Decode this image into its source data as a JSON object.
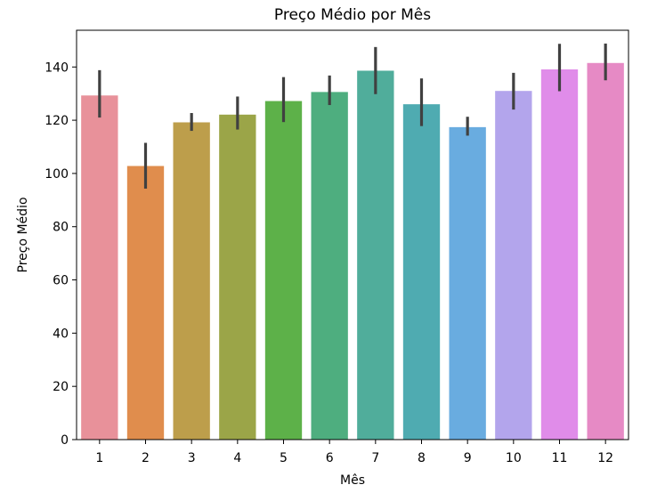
{
  "chart_data": {
    "type": "bar",
    "title": "Preço Médio por Mês",
    "xlabel": "Mês",
    "ylabel": "Preço Médio",
    "categories": [
      "1",
      "2",
      "3",
      "4",
      "5",
      "6",
      "7",
      "8",
      "9",
      "10",
      "11",
      "12"
    ],
    "values": [
      129.3,
      102.8,
      119.2,
      122.1,
      127.2,
      130.6,
      138.6,
      126.0,
      117.4,
      131.0,
      139.1,
      141.5
    ],
    "error_bars": {
      "lower": [
        121.0,
        94.3,
        116.0,
        116.5,
        119.3,
        125.7,
        129.8,
        117.8,
        114.2,
        124.0,
        130.9,
        135.0
      ],
      "upper": [
        138.8,
        111.5,
        122.7,
        128.9,
        136.2,
        136.8,
        147.5,
        135.7,
        121.3,
        137.8,
        148.7,
        148.8
      ]
    },
    "ylim": [
      0,
      153.8
    ],
    "yticks": [
      0,
      20,
      40,
      60,
      80,
      100,
      120,
      140
    ],
    "colors": [
      "#e8919a",
      "#e08d4d",
      "#bd9e4b",
      "#9ba548",
      "#5db149",
      "#4eae7f",
      "#50ad9b",
      "#4fabb1",
      "#69ace0",
      "#b3a5ec",
      "#e08ce9",
      "#e68ac5"
    ],
    "error_color": "#404040",
    "grid": false,
    "legend": false
  }
}
